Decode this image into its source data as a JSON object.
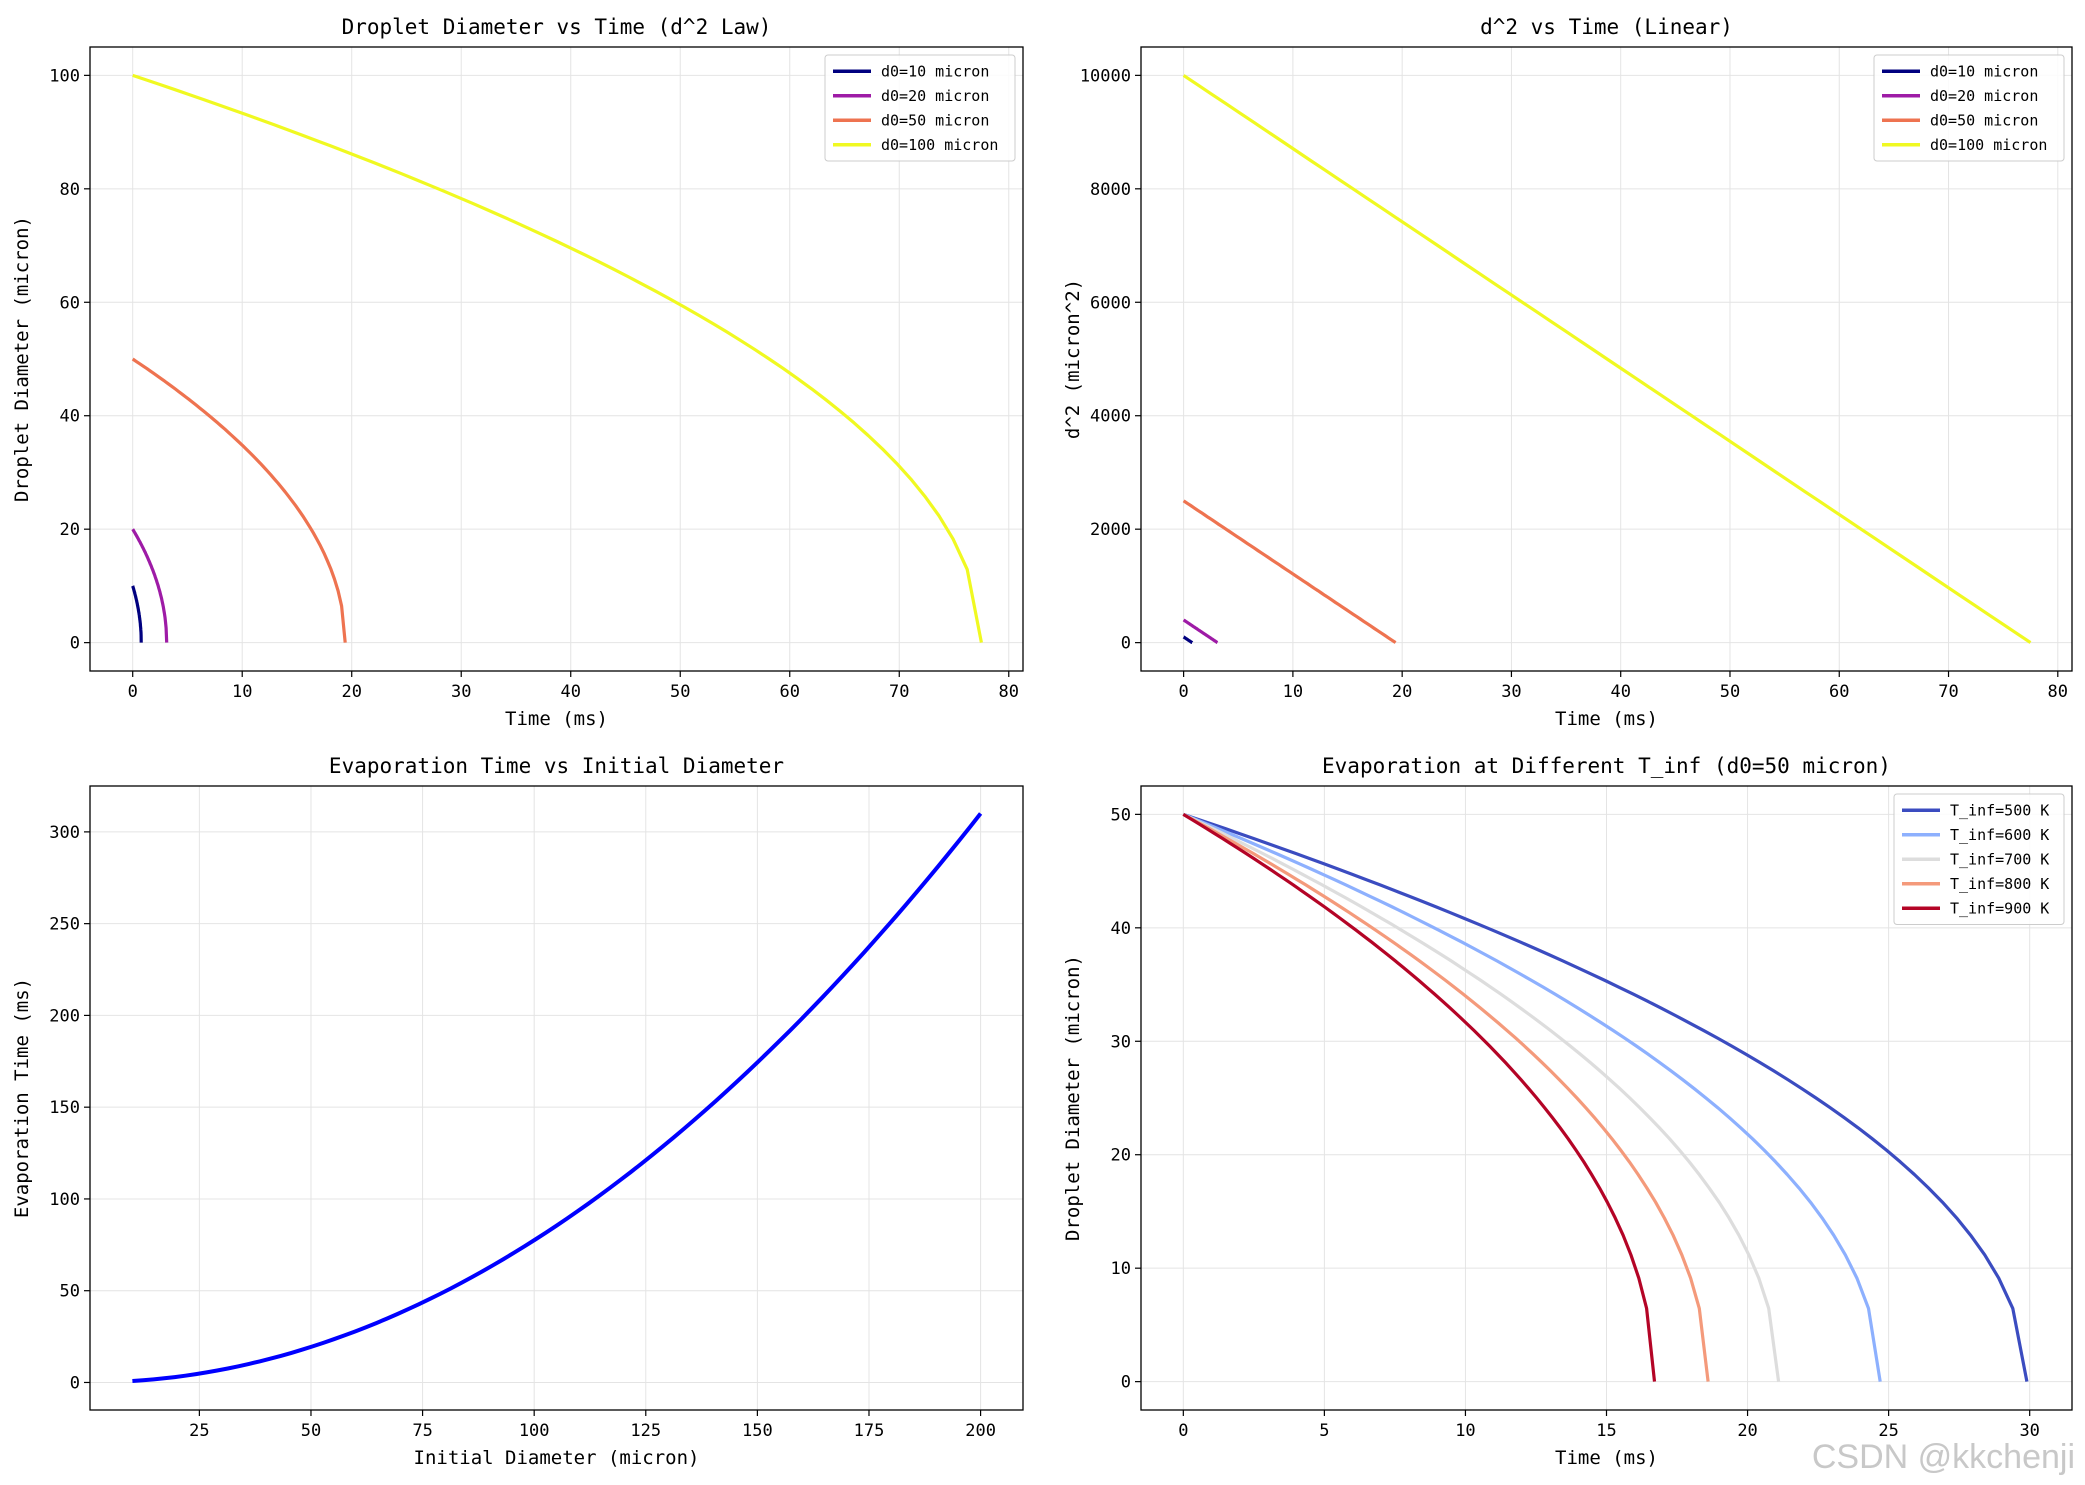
{
  "watermark": "CSDN @kkchenji",
  "chart_data": [
    {
      "type": "line",
      "title": "Droplet Diameter vs Time (d^2 Law)",
      "xlabel": "Time (ms)",
      "ylabel": "Droplet Diameter (micron)",
      "xlim": [
        -3.9,
        81.3
      ],
      "ylim": [
        -5,
        105
      ],
      "xticks": [
        0,
        10,
        20,
        30,
        40,
        50,
        60,
        70,
        80
      ],
      "yticks": [
        0,
        20,
        40,
        60,
        80,
        100
      ],
      "legend_loc": "upper right",
      "series": [
        {
          "name": "d0=10 micron",
          "color": "#00007f",
          "model": "sqrt",
          "d0": 10,
          "t_evap": 0.78
        },
        {
          "name": "d0=20 micron",
          "color": "#9e1ba6",
          "model": "sqrt",
          "d0": 20,
          "t_evap": 3.1
        },
        {
          "name": "d0=50 micron",
          "color": "#ee7350",
          "model": "sqrt",
          "d0": 50,
          "t_evap": 19.4
        },
        {
          "name": "d0=100 micron",
          "color": "#f0f921",
          "model": "sqrt",
          "d0": 100,
          "t_evap": 77.5
        }
      ]
    },
    {
      "type": "line",
      "title": "d^2 vs Time (Linear)",
      "xlabel": "Time (ms)",
      "ylabel": "d^2 (micron^2)",
      "xlim": [
        -3.9,
        81.3
      ],
      "ylim": [
        -500,
        10500
      ],
      "xticks": [
        0,
        10,
        20,
        30,
        40,
        50,
        60,
        70,
        80
      ],
      "yticks": [
        0,
        2000,
        4000,
        6000,
        8000,
        10000
      ],
      "legend_loc": "upper right",
      "series": [
        {
          "name": "d0=10 micron",
          "color": "#00007f",
          "model": "linear",
          "d0": 10,
          "t_evap": 0.78
        },
        {
          "name": "d0=20 micron",
          "color": "#9e1ba6",
          "model": "linear",
          "d0": 20,
          "t_evap": 3.1
        },
        {
          "name": "d0=50 micron",
          "color": "#ee7350",
          "model": "linear",
          "d0": 50,
          "t_evap": 19.4
        },
        {
          "name": "d0=100 micron",
          "color": "#f0f921",
          "model": "linear",
          "d0": 100,
          "t_evap": 77.5
        }
      ]
    },
    {
      "type": "line",
      "title": "Evaporation Time vs Initial Diameter",
      "xlabel": "Initial Diameter (micron)",
      "ylabel": "Evaporation Time (ms)",
      "xlim": [
        0.5,
        209.5
      ],
      "ylim": [
        -15,
        325
      ],
      "xticks": [
        25,
        50,
        75,
        100,
        125,
        150,
        175,
        200
      ],
      "yticks": [
        0,
        50,
        100,
        150,
        200,
        250,
        300
      ],
      "legend_loc": "none",
      "series": [
        {
          "name": "evaporation time",
          "color": "#0000ff",
          "model": "quadratic",
          "x_range": [
            10,
            200
          ],
          "k": 0.00775
        }
      ]
    },
    {
      "type": "line",
      "title": "Evaporation at Different T_inf (d0=50 micron)",
      "xlabel": "Time (ms)",
      "ylabel": "Droplet Diameter (micron)",
      "xlim": [
        -1.5,
        31.5
      ],
      "ylim": [
        -2.5,
        52.5
      ],
      "xticks": [
        0,
        5,
        10,
        15,
        20,
        25,
        30
      ],
      "yticks": [
        0,
        10,
        20,
        30,
        40,
        50
      ],
      "legend_loc": "upper right",
      "series": [
        {
          "name": "T_inf=500 K",
          "color": "#3b4cc0",
          "model": "sqrt",
          "d0": 50,
          "t_evap": 29.9
        },
        {
          "name": "T_inf=600 K",
          "color": "#8db0fe",
          "model": "sqrt",
          "d0": 50,
          "t_evap": 24.7
        },
        {
          "name": "T_inf=700 K",
          "color": "#dddddd",
          "model": "sqrt",
          "d0": 50,
          "t_evap": 21.1
        },
        {
          "name": "T_inf=800 K",
          "color": "#f49a7b",
          "model": "sqrt",
          "d0": 50,
          "t_evap": 18.6
        },
        {
          "name": "T_inf=900 K",
          "color": "#b40426",
          "model": "sqrt",
          "d0": 50,
          "t_evap": 16.7
        }
      ]
    }
  ]
}
